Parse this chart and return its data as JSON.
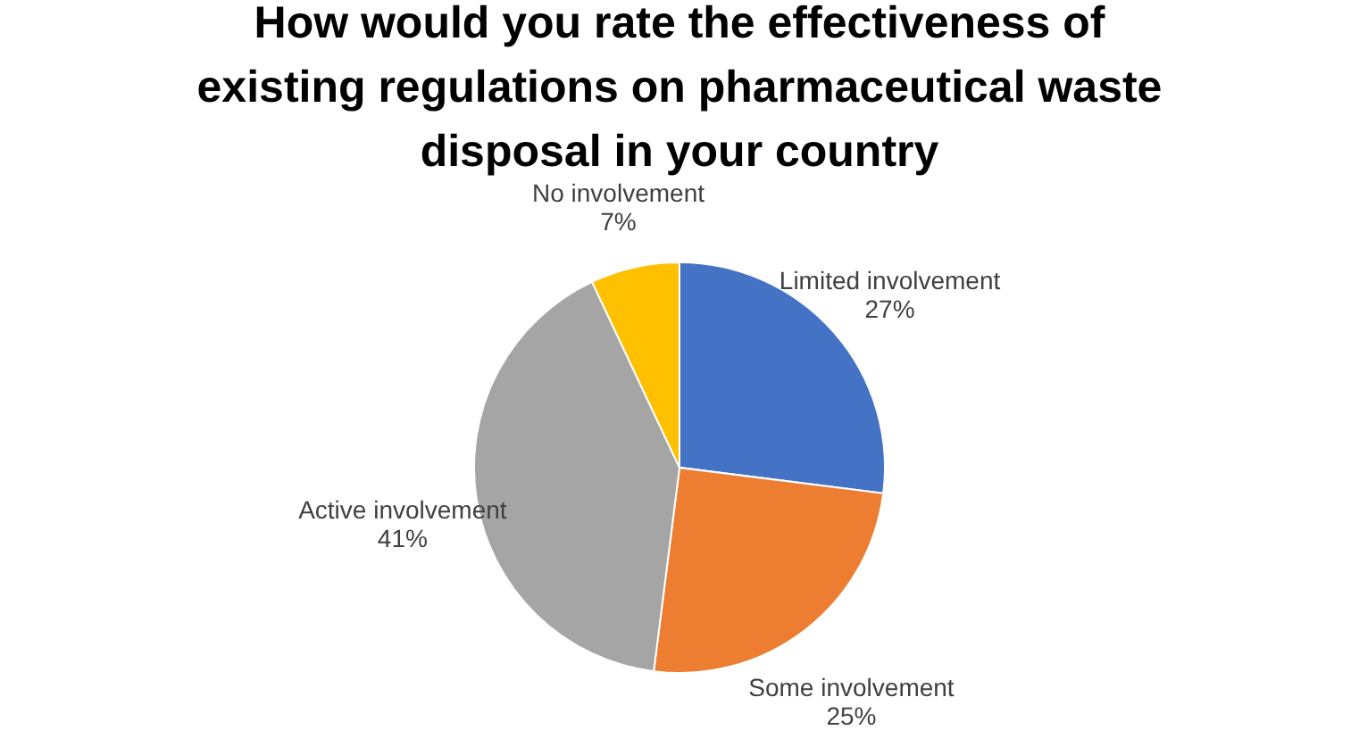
{
  "chart_data": {
    "type": "pie",
    "title": "How would you rate the effectiveness of existing regulations on pharmaceutical waste disposal in your country",
    "categories": [
      "Limited involvement",
      "Some involvement",
      "Active involvement",
      "No involvement"
    ],
    "values": [
      27,
      25,
      41,
      7
    ],
    "colors": [
      "#4472c4",
      "#ed7d31",
      "#a5a5a5",
      "#ffc000"
    ],
    "value_labels": [
      "27%",
      "25%",
      "41%",
      "7%"
    ],
    "legend": false
  }
}
